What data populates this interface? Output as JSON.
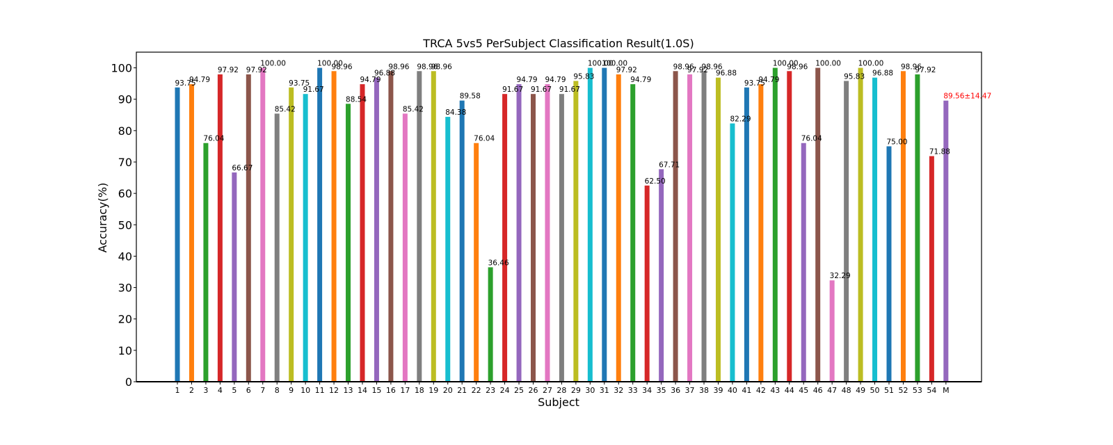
{
  "chart_data": {
    "type": "bar",
    "title": "TRCA 5vs5 PerSubject Classification Result(1.0S)",
    "xlabel": "Subject",
    "ylabel": "Accuracy(%)",
    "ylim": [
      0,
      105
    ],
    "yticks": [
      0,
      10,
      20,
      30,
      40,
      50,
      60,
      70,
      80,
      90,
      100
    ],
    "grid": false,
    "categories": [
      "1",
      "2",
      "3",
      "4",
      "5",
      "6",
      "7",
      "8",
      "9",
      "10",
      "11",
      "12",
      "13",
      "14",
      "15",
      "16",
      "17",
      "18",
      "19",
      "20",
      "21",
      "22",
      "23",
      "24",
      "25",
      "26",
      "27",
      "28",
      "29",
      "30",
      "31",
      "32",
      "33",
      "34",
      "35",
      "36",
      "37",
      "38",
      "39",
      "40",
      "41",
      "42",
      "43",
      "44",
      "45",
      "46",
      "47",
      "48",
      "49",
      "50",
      "51",
      "52",
      "53",
      "54",
      "M"
    ],
    "values": [
      93.75,
      94.79,
      76.04,
      97.92,
      66.67,
      97.92,
      100.0,
      85.42,
      93.75,
      91.67,
      100.0,
      98.96,
      88.54,
      94.79,
      96.88,
      98.96,
      85.42,
      98.96,
      98.96,
      84.38,
      89.58,
      76.04,
      36.46,
      91.67,
      94.79,
      91.67,
      94.79,
      91.67,
      95.83,
      100.0,
      100.0,
      97.92,
      94.79,
      62.5,
      67.71,
      98.96,
      97.92,
      98.96,
      96.88,
      82.29,
      93.75,
      94.79,
      100.0,
      98.96,
      76.04,
      100.0,
      32.29,
      95.83,
      100.0,
      96.88,
      75.0,
      98.96,
      97.92,
      71.88,
      89.56
    ],
    "data_labels": [
      "93.75",
      "94.79",
      "76.04",
      "97.92",
      "66.67",
      "97.92",
      "100.00",
      "85.42",
      "93.75",
      "91.67",
      "100.00",
      "98.96",
      "88.54",
      "94.79",
      "96.88",
      "98.96",
      "85.42",
      "98.96",
      "98.96",
      "84.38",
      "89.58",
      "76.04",
      "36.46",
      "91.67",
      "94.79",
      "91.67",
      "94.79",
      "91.67",
      "95.83",
      "100.00",
      "100.00",
      "97.92",
      "94.79",
      "62.50",
      "67.71",
      "98.96",
      "97.92",
      "98.96",
      "96.88",
      "82.29",
      "93.75",
      "94.79",
      "100.00",
      "98.96",
      "76.04",
      "100.00",
      "32.29",
      "95.83",
      "100.00",
      "96.88",
      "75.00",
      "98.96",
      "97.92",
      "71.88",
      "89.56±14.47"
    ],
    "mean_label_color": "#ff0000",
    "colors": [
      "#1f77b4",
      "#ff7f0e",
      "#2ca02c",
      "#d62728",
      "#9467bd",
      "#8c564b",
      "#e377c2",
      "#7f7f7f",
      "#bcbd22",
      "#17becf"
    ]
  }
}
